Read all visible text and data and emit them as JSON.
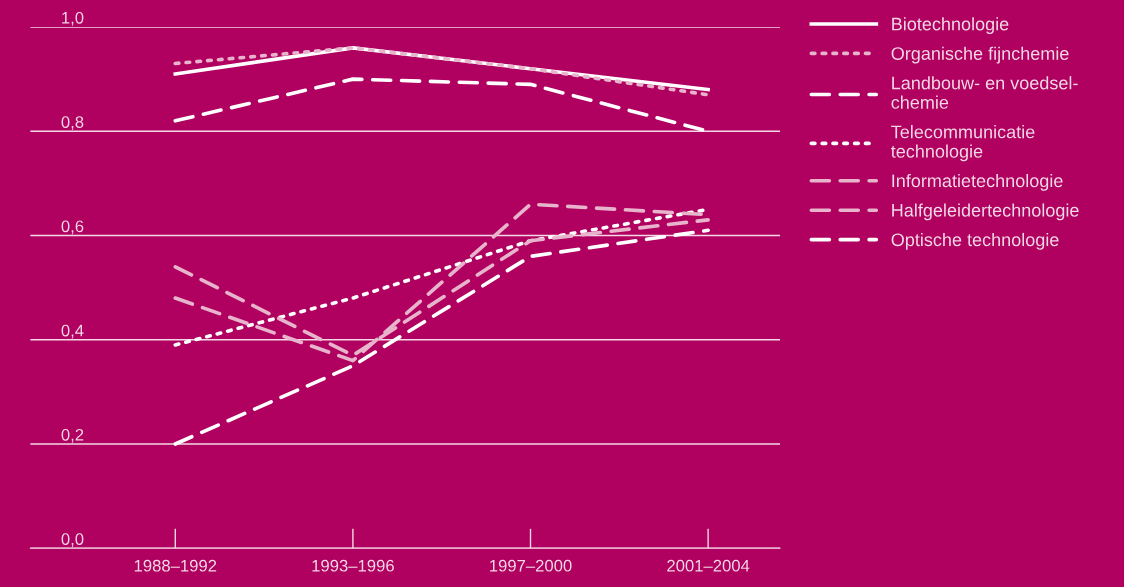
{
  "chart_data": {
    "type": "line",
    "categories": [
      "1988–1992",
      "1993–1996",
      "1997–2000",
      "2001–2004"
    ],
    "series": [
      {
        "name": "Biotechnologie",
        "color": "#ffffff",
        "line_style": "solid",
        "values": [
          0.91,
          0.96,
          0.92,
          0.88
        ]
      },
      {
        "name": "Organische fijnchemie",
        "color": "#e8b4cc",
        "line_style": "dotted",
        "values": [
          0.93,
          0.96,
          0.92,
          0.87
        ]
      },
      {
        "name": "Landbouw- en voedsel-\nchemie",
        "color": "#ffffff",
        "line_style": "dashed",
        "values": [
          0.82,
          0.9,
          0.89,
          0.8
        ]
      },
      {
        "name": "Telecommunicatie\ntechnologie",
        "color": "#ffffff",
        "line_style": "dotted",
        "values": [
          0.39,
          0.48,
          0.59,
          0.65
        ]
      },
      {
        "name": "Informatietechnologie",
        "color": "#e8b4cc",
        "line_style": "dashed",
        "values": [
          0.48,
          0.36,
          0.66,
          0.64
        ]
      },
      {
        "name": "Halfgeleidertechnologie",
        "color": "#e8b4cc",
        "line_style": "dashed",
        "values": [
          0.54,
          0.37,
          0.59,
          0.63
        ]
      },
      {
        "name": "Optische technologie",
        "color": "#ffffff",
        "line_style": "dashed",
        "values": [
          0.2,
          0.35,
          0.56,
          0.61
        ]
      }
    ],
    "ylim": [
      0,
      1.0
    ],
    "yticks": [
      {
        "value": 0,
        "label": "0,0"
      },
      {
        "value": 0.2,
        "label": "0,2"
      },
      {
        "value": 0.4,
        "label": "0,4"
      },
      {
        "value": 0.6,
        "label": "0,6"
      },
      {
        "value": 0.8,
        "label": "0,8"
      },
      {
        "value": 1.0,
        "label": "1,0"
      }
    ],
    "grid": "y",
    "legend": "top right",
    "marker": "none"
  }
}
